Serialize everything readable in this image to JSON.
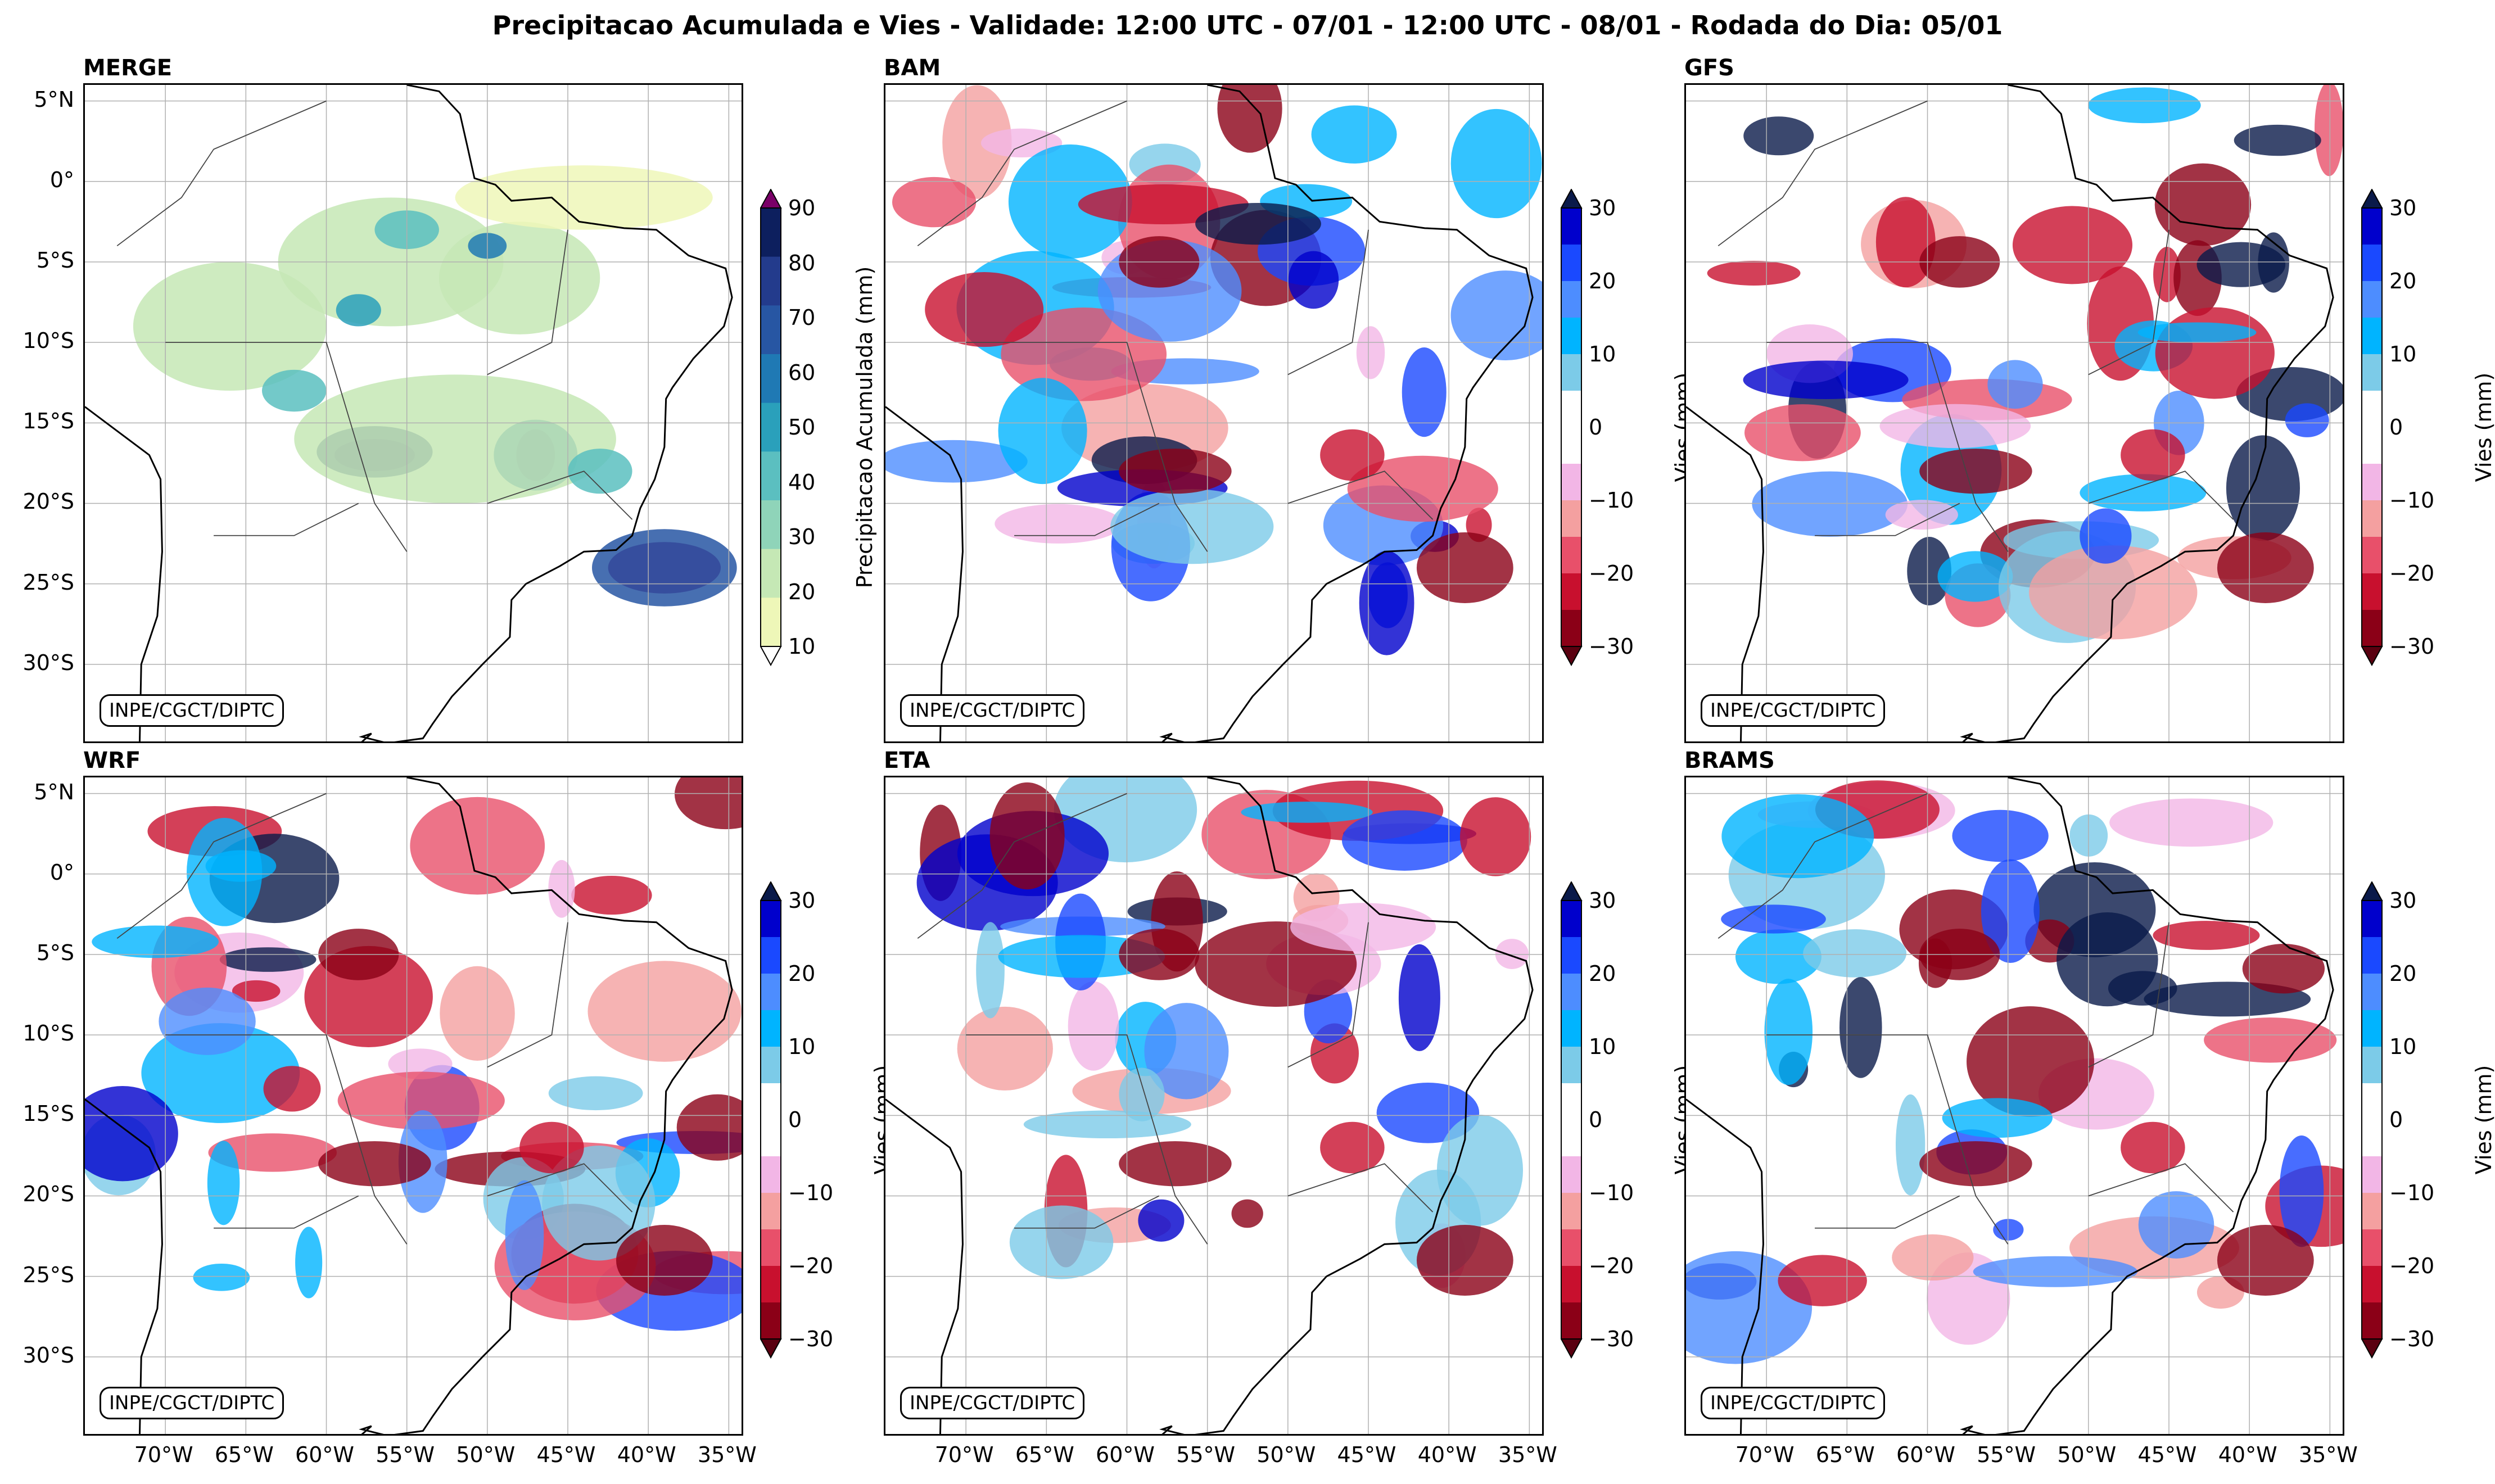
{
  "title": "Precipitacao Acumulada e Vies - Validade: 12:00 UTC - 07/01 - 12:00 UTC - 08/01 - Rodada do Dia: 05/01",
  "credit": "INPE/CGCT/DIPTC",
  "lat_labels": [
    "5°N",
    "0°",
    "5°S",
    "10°S",
    "15°S",
    "20°S",
    "25°S",
    "30°S"
  ],
  "lon_labels": [
    "70°W",
    "65°W",
    "60°W",
    "55°W",
    "50°W",
    "45°W",
    "40°W",
    "35°W"
  ],
  "panels": [
    {
      "name": "MERGE",
      "kind": "precip"
    },
    {
      "name": "BAM",
      "kind": "bias"
    },
    {
      "name": "GFS",
      "kind": "bias"
    },
    {
      "name": "WRF",
      "kind": "bias"
    },
    {
      "name": "ETA",
      "kind": "bias"
    },
    {
      "name": "BRAMS",
      "kind": "bias"
    }
  ],
  "precip_colorbar": {
    "label": "Precipitacao Acumulada (mm)",
    "ticks": [
      "90",
      "80",
      "70",
      "60",
      "50",
      "40",
      "30",
      "20",
      "10"
    ],
    "colors": [
      "#0d1f5e",
      "#233b8c",
      "#2756a3",
      "#1f79b4",
      "#2aa0bb",
      "#5bbfc0",
      "#8fd4b9",
      "#c5e8b5",
      "#eef7b8"
    ],
    "extend_top": "#7a0068"
  },
  "bias_colorbar": {
    "label": "Vies (mm)",
    "ticks": [
      "30",
      "20",
      "10",
      "0",
      "−10",
      "−20",
      "−30"
    ],
    "colors": [
      "#0000cc",
      "#1a49ff",
      "#4d8dff",
      "#00b4ff",
      "#7ccbe8",
      "#ffffff",
      "#ffffff",
      "#f2b6e6",
      "#f4a0a0",
      "#e8506a",
      "#c8102e",
      "#8b0017"
    ],
    "extend_top": "#0a1a4a",
    "extend_bottom": "#5a0010"
  }
}
